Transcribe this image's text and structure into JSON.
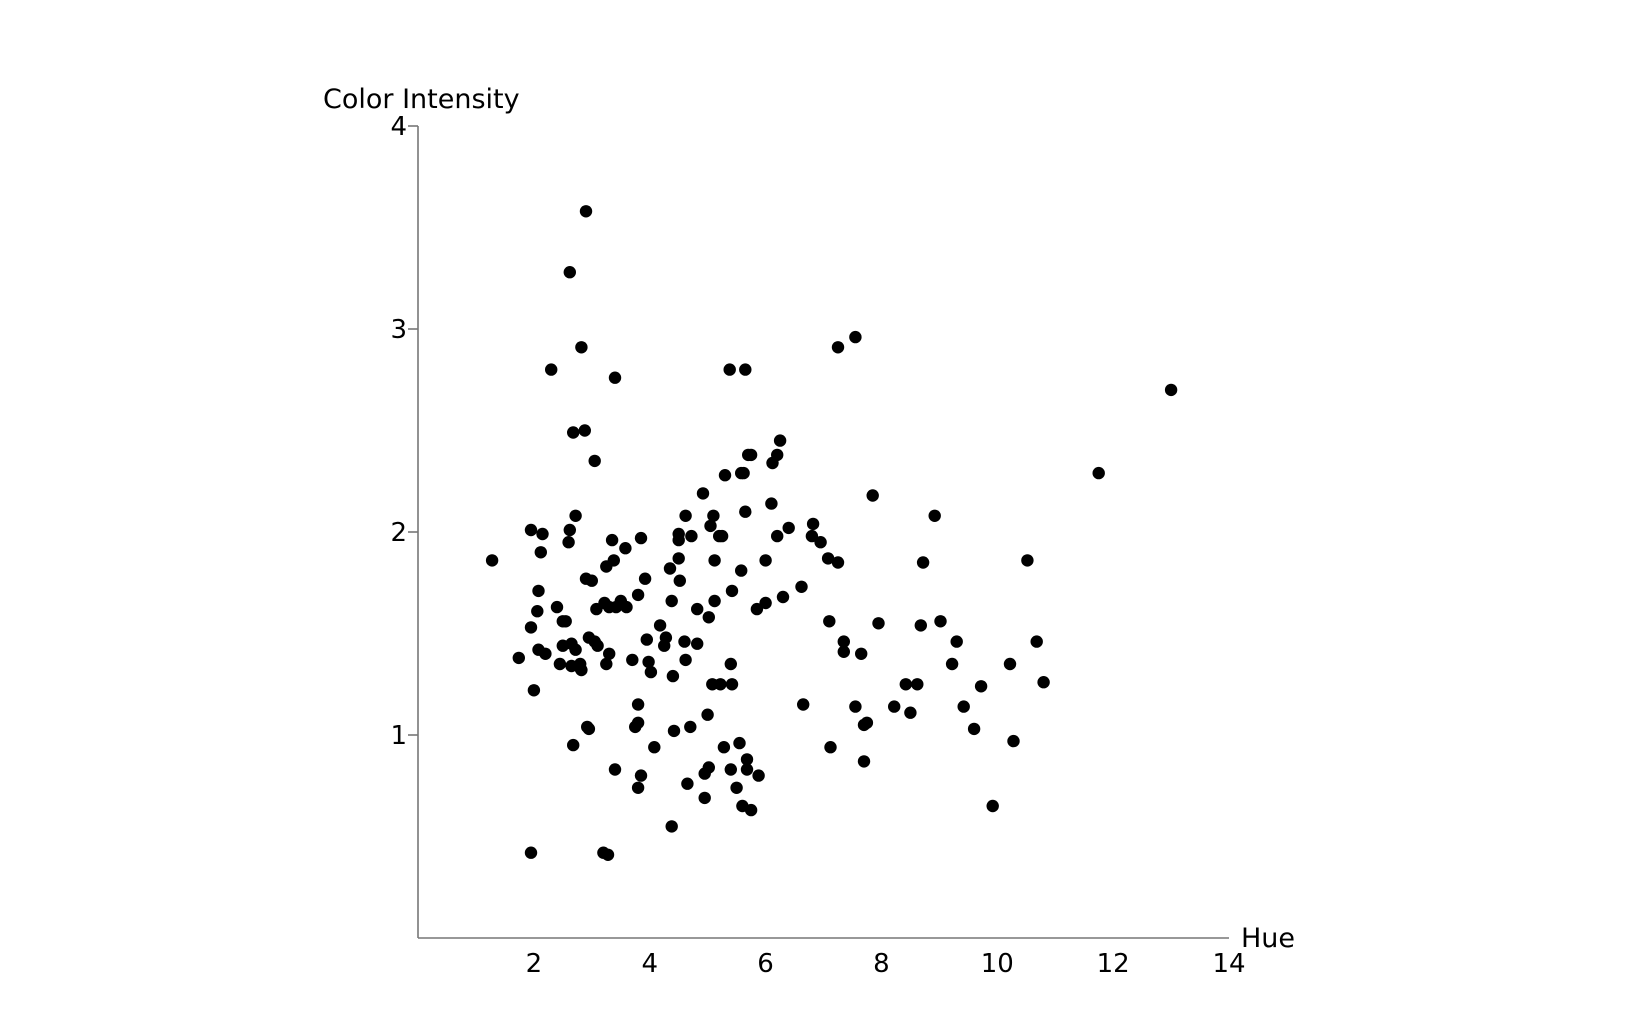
{
  "chart_data": {
    "type": "scatter",
    "title": "",
    "xlabel": "Hue",
    "ylabel": "Color Intensity",
    "xlim": [
      0,
      14
    ],
    "ylim": [
      0,
      4
    ],
    "x_ticks": [
      2,
      4,
      6,
      8,
      10,
      12,
      14
    ],
    "y_ticks": [
      1,
      2,
      3,
      4
    ],
    "grid": false,
    "legend": "none",
    "colors": {
      "point": "#000000",
      "axis": "#777777"
    },
    "points": [
      [
        1.28,
        1.86
      ],
      [
        1.74,
        1.38
      ],
      [
        1.95,
        2.01
      ],
      [
        1.95,
        1.53
      ],
      [
        1.95,
        0.42
      ],
      [
        2.0,
        1.22
      ],
      [
        2.06,
        1.61
      ],
      [
        2.08,
        1.71
      ],
      [
        2.08,
        1.42
      ],
      [
        2.12,
        1.9
      ],
      [
        2.15,
        1.99
      ],
      [
        2.2,
        1.4
      ],
      [
        2.3,
        2.8
      ],
      [
        2.4,
        1.63
      ],
      [
        2.45,
        1.35
      ],
      [
        2.5,
        1.56
      ],
      [
        2.5,
        1.44
      ],
      [
        2.55,
        1.56
      ],
      [
        2.6,
        1.95
      ],
      [
        2.62,
        2.01
      ],
      [
        2.62,
        3.28
      ],
      [
        2.65,
        1.34
      ],
      [
        2.65,
        1.45
      ],
      [
        2.68,
        0.95
      ],
      [
        2.68,
        2.49
      ],
      [
        2.72,
        2.08
      ],
      [
        2.72,
        1.42
      ],
      [
        2.8,
        1.35
      ],
      [
        2.8,
        1.33
      ],
      [
        2.82,
        2.91
      ],
      [
        2.82,
        1.32
      ],
      [
        2.88,
        2.5
      ],
      [
        2.9,
        3.58
      ],
      [
        2.9,
        1.77
      ],
      [
        2.92,
        1.04
      ],
      [
        2.95,
        1.48
      ],
      [
        2.95,
        1.03
      ],
      [
        3.0,
        1.76
      ],
      [
        3.05,
        2.35
      ],
      [
        3.05,
        1.46
      ],
      [
        3.08,
        1.62
      ],
      [
        3.1,
        1.44
      ],
      [
        3.2,
        0.42
      ],
      [
        3.22,
        1.65
      ],
      [
        3.25,
        1.83
      ],
      [
        3.25,
        1.35
      ],
      [
        3.28,
        0.41
      ],
      [
        3.3,
        1.63
      ],
      [
        3.3,
        1.4
      ],
      [
        3.35,
        1.96
      ],
      [
        3.38,
        1.86
      ],
      [
        3.4,
        2.76
      ],
      [
        3.4,
        0.83
      ],
      [
        3.42,
        1.63
      ],
      [
        3.5,
        1.66
      ],
      [
        3.58,
        1.92
      ],
      [
        3.6,
        1.63
      ],
      [
        3.7,
        1.37
      ],
      [
        3.75,
        1.04
      ],
      [
        3.8,
        1.69
      ],
      [
        3.8,
        1.15
      ],
      [
        3.8,
        1.06
      ],
      [
        3.8,
        0.74
      ],
      [
        3.85,
        1.97
      ],
      [
        3.85,
        0.8
      ],
      [
        3.92,
        1.77
      ],
      [
        3.95,
        1.47
      ],
      [
        3.98,
        1.36
      ],
      [
        4.02,
        1.31
      ],
      [
        4.08,
        0.94
      ],
      [
        4.18,
        1.54
      ],
      [
        4.25,
        1.44
      ],
      [
        4.28,
        1.48
      ],
      [
        4.35,
        1.82
      ],
      [
        4.38,
        1.66
      ],
      [
        4.38,
        0.55
      ],
      [
        4.4,
        1.29
      ],
      [
        4.42,
        1.02
      ],
      [
        4.5,
        1.87
      ],
      [
        4.5,
        1.99
      ],
      [
        4.5,
        1.96
      ],
      [
        4.52,
        1.76
      ],
      [
        4.6,
        1.46
      ],
      [
        4.62,
        1.37
      ],
      [
        4.62,
        2.08
      ],
      [
        4.65,
        0.76
      ],
      [
        4.7,
        1.04
      ],
      [
        4.72,
        1.98
      ],
      [
        4.82,
        1.62
      ],
      [
        4.82,
        1.45
      ],
      [
        4.92,
        2.19
      ],
      [
        4.95,
        0.81
      ],
      [
        4.95,
        0.69
      ],
      [
        5.0,
        1.1
      ],
      [
        5.02,
        0.84
      ],
      [
        5.02,
        1.58
      ],
      [
        5.05,
        2.03
      ],
      [
        5.08,
        1.25
      ],
      [
        5.1,
        2.08
      ],
      [
        5.12,
        1.86
      ],
      [
        5.12,
        1.66
      ],
      [
        5.2,
        1.98
      ],
      [
        5.22,
        1.25
      ],
      [
        5.25,
        1.98
      ],
      [
        5.28,
        0.94
      ],
      [
        5.3,
        2.28
      ],
      [
        5.38,
        2.8
      ],
      [
        5.4,
        1.35
      ],
      [
        5.4,
        0.83
      ],
      [
        5.42,
        1.71
      ],
      [
        5.42,
        1.25
      ],
      [
        5.5,
        0.74
      ],
      [
        5.55,
        0.96
      ],
      [
        5.58,
        2.29
      ],
      [
        5.58,
        1.81
      ],
      [
        5.6,
        0.65
      ],
      [
        5.62,
        2.29
      ],
      [
        5.65,
        2.1
      ],
      [
        5.65,
        2.8
      ],
      [
        5.68,
        0.88
      ],
      [
        5.68,
        0.83
      ],
      [
        5.7,
        2.38
      ],
      [
        5.75,
        0.63
      ],
      [
        5.75,
        2.38
      ],
      [
        5.85,
        1.62
      ],
      [
        5.88,
        0.8
      ],
      [
        6.0,
        1.86
      ],
      [
        6.0,
        1.65
      ],
      [
        6.1,
        2.14
      ],
      [
        6.12,
        2.34
      ],
      [
        6.2,
        2.38
      ],
      [
        6.2,
        1.98
      ],
      [
        6.25,
        2.45
      ],
      [
        6.3,
        1.68
      ],
      [
        6.4,
        2.02
      ],
      [
        6.62,
        1.73
      ],
      [
        6.65,
        1.15
      ],
      [
        6.8,
        1.98
      ],
      [
        6.82,
        2.04
      ],
      [
        6.95,
        1.95
      ],
      [
        7.08,
        1.87
      ],
      [
        7.1,
        1.56
      ],
      [
        7.12,
        0.94
      ],
      [
        7.25,
        1.85
      ],
      [
        7.25,
        2.91
      ],
      [
        7.35,
        1.46
      ],
      [
        7.35,
        1.41
      ],
      [
        7.55,
        2.96
      ],
      [
        7.55,
        1.14
      ],
      [
        7.65,
        1.4
      ],
      [
        7.7,
        0.87
      ],
      [
        7.7,
        1.05
      ],
      [
        7.75,
        1.06
      ],
      [
        7.85,
        2.18
      ],
      [
        7.95,
        1.55
      ],
      [
        8.22,
        1.14
      ],
      [
        8.42,
        1.25
      ],
      [
        8.5,
        1.11
      ],
      [
        8.62,
        1.25
      ],
      [
        8.68,
        1.54
      ],
      [
        8.72,
        1.85
      ],
      [
        8.92,
        2.08
      ],
      [
        9.02,
        1.56
      ],
      [
        9.22,
        1.35
      ],
      [
        9.3,
        1.46
      ],
      [
        9.42,
        1.14
      ],
      [
        9.6,
        1.03
      ],
      [
        9.72,
        1.24
      ],
      [
        9.92,
        0.65
      ],
      [
        10.22,
        1.35
      ],
      [
        10.28,
        0.97
      ],
      [
        10.52,
        1.86
      ],
      [
        10.68,
        1.46
      ],
      [
        10.8,
        1.26
      ],
      [
        11.75,
        2.29
      ],
      [
        13.0,
        2.7
      ]
    ]
  }
}
